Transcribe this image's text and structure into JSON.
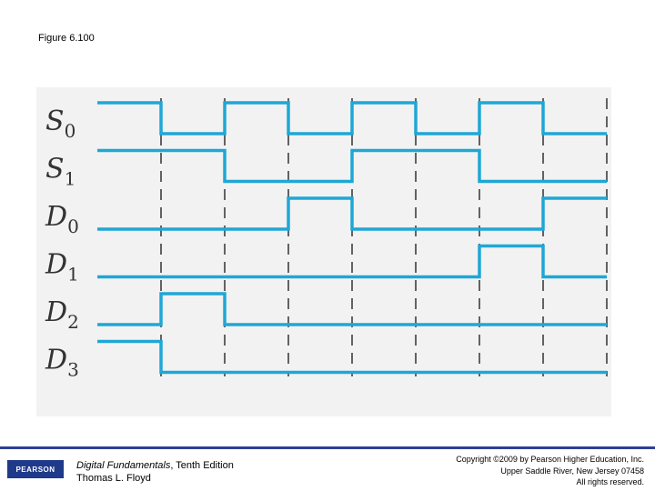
{
  "figure_title": "Figure 6.100",
  "diagram": {
    "clock_period_count": 8,
    "signals": [
      {
        "name": "S",
        "sub": "0",
        "levels": [
          1,
          0,
          1,
          0,
          1,
          0,
          1,
          0
        ]
      },
      {
        "name": "S",
        "sub": "1",
        "levels": [
          1,
          1,
          0,
          0,
          1,
          1,
          0,
          0
        ]
      },
      {
        "name": "D",
        "sub": "0",
        "levels": [
          0,
          0,
          0,
          1,
          0,
          0,
          0,
          1
        ]
      },
      {
        "name": "D",
        "sub": "1",
        "levels": [
          0,
          0,
          0,
          0,
          0,
          0,
          1,
          0
        ]
      },
      {
        "name": "D",
        "sub": "2",
        "levels": [
          0,
          1,
          0,
          0,
          0,
          0,
          0,
          0
        ]
      },
      {
        "name": "D",
        "sub": "3",
        "levels": [
          1,
          0,
          0,
          0,
          0,
          0,
          0,
          0
        ]
      }
    ],
    "colors": {
      "waveform": "#1ea7d6",
      "dashed_line": "#333333",
      "label": "#333333",
      "background": "#f2f2f2"
    }
  },
  "footer": {
    "logo_text": "PEARSON",
    "book_title": "Digital Fundamentals",
    "book_edition": ", Tenth Edition",
    "author": "Thomas L. Floyd",
    "copyright_line1": "Copyright ©2009 by Pearson Higher Education, Inc.",
    "copyright_line2": "Upper Saddle River, New Jersey 07458",
    "copyright_line3": "All rights reserved.",
    "rule_color": "#2f3e99"
  }
}
